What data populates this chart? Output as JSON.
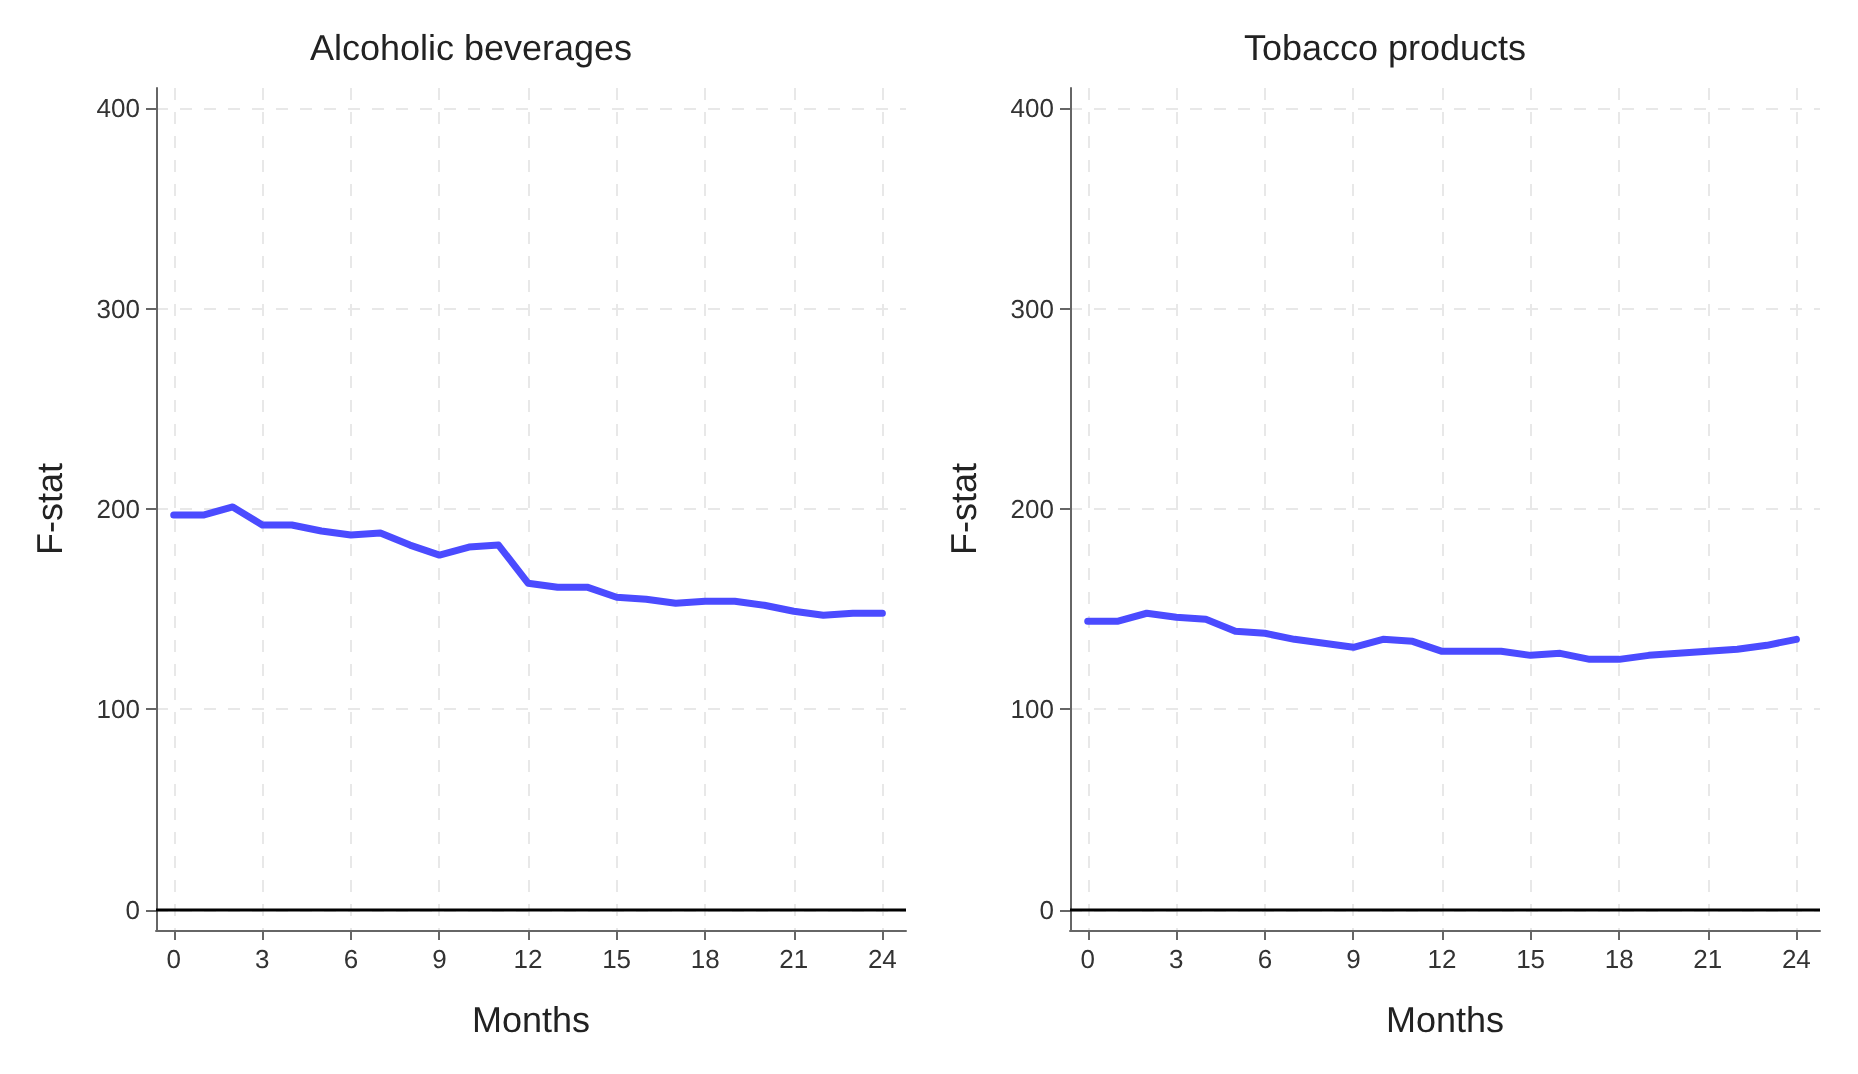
{
  "chart_data": [
    {
      "type": "line",
      "title": "Alcoholic beverages",
      "xlabel": "Months",
      "ylabel": "F-stat",
      "x": [
        0,
        1,
        2,
        3,
        4,
        5,
        6,
        7,
        8,
        9,
        10,
        11,
        12,
        13,
        14,
        15,
        16,
        17,
        18,
        19,
        20,
        21,
        22,
        23,
        24
      ],
      "series": [
        {
          "color": "#4b4bff",
          "values": [
            197,
            197,
            201,
            192,
            192,
            189,
            187,
            188,
            182,
            177,
            181,
            182,
            163,
            161,
            161,
            156,
            155,
            153,
            154,
            154,
            152,
            149,
            147,
            148,
            148
          ]
        }
      ],
      "xlim": [
        -0.6,
        24.8
      ],
      "xticks": [
        0,
        3,
        6,
        9,
        12,
        15,
        18,
        21,
        24
      ],
      "ylim": [
        -10,
        410
      ],
      "yticks": [
        0,
        100,
        200,
        300,
        400
      ],
      "grid": true,
      "line_style": "solid",
      "marker": "none",
      "ref_lines": [
        {
          "axis": "y",
          "value": 0,
          "color": "#000000"
        }
      ]
    },
    {
      "type": "line",
      "title": "Tobacco products",
      "xlabel": "Months",
      "ylabel": "F-stat",
      "x": [
        0,
        1,
        2,
        3,
        4,
        5,
        6,
        7,
        8,
        9,
        10,
        11,
        12,
        13,
        14,
        15,
        16,
        17,
        18,
        19,
        20,
        21,
        22,
        23,
        24
      ],
      "series": [
        {
          "color": "#4b4bff",
          "values": [
            144,
            144,
            148,
            146,
            145,
            139,
            138,
            135,
            133,
            131,
            135,
            134,
            129,
            129,
            129,
            127,
            128,
            125,
            125,
            127,
            128,
            129,
            130,
            132,
            135
          ]
        }
      ],
      "xlim": [
        -0.6,
        24.8
      ],
      "xticks": [
        0,
        3,
        6,
        9,
        12,
        15,
        18,
        21,
        24
      ],
      "ylim": [
        -10,
        410
      ],
      "yticks": [
        0,
        100,
        200,
        300,
        400
      ],
      "grid": true,
      "line_style": "solid",
      "marker": "none",
      "ref_lines": [
        {
          "axis": "y",
          "value": 0,
          "color": "#000000"
        }
      ]
    }
  ]
}
